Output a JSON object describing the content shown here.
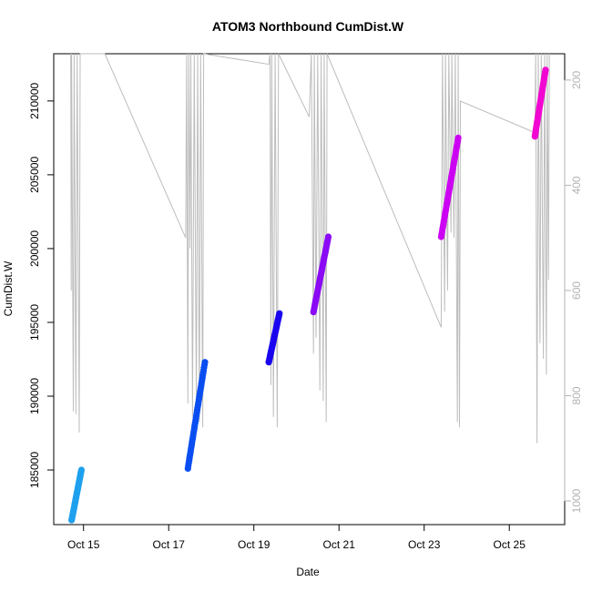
{
  "chart_data": {
    "type": "scatter",
    "title": "ATOM3 Northbound CumDist.W",
    "xlabel": "Date",
    "ylabel": "CumDist.W",
    "x_ticks": [
      {
        "x": 15,
        "label": "Oct 15"
      },
      {
        "x": 17,
        "label": "Oct 17"
      },
      {
        "x": 19,
        "label": "Oct 19"
      },
      {
        "x": 21,
        "label": "Oct 21"
      },
      {
        "x": 23,
        "label": "Oct 23"
      },
      {
        "x": 25,
        "label": "Oct 25"
      }
    ],
    "y_ticks": [
      185000,
      190000,
      195000,
      200000,
      205000,
      210000
    ],
    "y_tick_labels": [
      "185000",
      "190000",
      "195000",
      "200000",
      "205000",
      "210000"
    ],
    "y2_ticks": [
      200,
      400,
      600,
      800,
      1000
    ],
    "y2_tick_labels": [
      "200",
      "400",
      "600",
      "800",
      "1000"
    ],
    "xlim": [
      14.3,
      26.3
    ],
    "ylim": [
      181300,
      213200
    ],
    "y2lim": [
      1045,
      150
    ],
    "grid": false,
    "series": [
      {
        "color": "#1fa0ef",
        "x": [
          14.72,
          14.95
        ],
        "y": [
          181600,
          185000
        ]
      },
      {
        "color": "#0a4ef2",
        "x": [
          17.45,
          17.85
        ],
        "y": [
          185100,
          192300
        ]
      },
      {
        "color": "#1a05ef",
        "x": [
          19.35,
          19.6
        ],
        "y": [
          192300,
          195600
        ]
      },
      {
        "color": "#8a0af5",
        "x": [
          20.4,
          20.75
        ],
        "y": [
          195700,
          200800
        ]
      },
      {
        "color": "#cc00f2",
        "x": [
          23.4,
          23.8
        ],
        "y": [
          200800,
          207500
        ]
      },
      {
        "color": "#f206d2",
        "x": [
          25.6,
          25.85
        ],
        "y": [
          207600,
          212100
        ]
      }
    ],
    "track": {
      "color": "#bdbdbd",
      "points": [
        [
          14.7,
          150
        ],
        [
          14.71,
          600
        ],
        [
          14.72,
          150
        ],
        [
          14.76,
          830
        ],
        [
          14.78,
          150
        ],
        [
          14.82,
          835
        ],
        [
          14.85,
          150
        ],
        [
          14.9,
          870
        ],
        [
          14.92,
          150
        ],
        [
          15.5,
          150
        ],
        [
          17.4,
          500
        ],
        [
          17.42,
          150
        ],
        [
          17.45,
          815
        ],
        [
          17.47,
          150
        ],
        [
          17.5,
          520
        ],
        [
          17.52,
          150
        ],
        [
          17.56,
          840
        ],
        [
          17.6,
          150
        ],
        [
          17.65,
          830
        ],
        [
          17.68,
          150
        ],
        [
          17.72,
          850
        ],
        [
          17.75,
          150
        ],
        [
          17.8,
          860
        ],
        [
          17.82,
          150
        ],
        [
          19.35,
          170
        ],
        [
          19.38,
          150
        ],
        [
          19.4,
          780
        ],
        [
          19.42,
          150
        ],
        [
          19.46,
          840
        ],
        [
          19.5,
          150
        ],
        [
          19.55,
          860
        ],
        [
          19.58,
          150
        ],
        [
          20.3,
          270
        ],
        [
          20.35,
          150
        ],
        [
          20.4,
          720
        ],
        [
          20.42,
          150
        ],
        [
          20.46,
          690
        ],
        [
          20.5,
          150
        ],
        [
          20.55,
          790
        ],
        [
          20.58,
          150
        ],
        [
          20.63,
          810
        ],
        [
          20.65,
          150
        ],
        [
          20.7,
          850
        ],
        [
          20.72,
          150
        ],
        [
          23.4,
          670
        ],
        [
          23.43,
          150
        ],
        [
          23.48,
          640
        ],
        [
          23.5,
          150
        ],
        [
          23.55,
          600
        ],
        [
          23.58,
          150
        ],
        [
          23.63,
          490
        ],
        [
          23.65,
          150
        ],
        [
          23.7,
          500
        ],
        [
          23.73,
          150
        ],
        [
          23.78,
          850
        ],
        [
          23.8,
          150
        ],
        [
          23.83,
          860
        ],
        [
          23.85,
          240
        ],
        [
          25.6,
          300
        ],
        [
          25.62,
          150
        ],
        [
          25.65,
          890
        ],
        [
          25.68,
          150
        ],
        [
          25.72,
          700
        ],
        [
          25.75,
          150
        ],
        [
          25.8,
          730
        ],
        [
          25.83,
          150
        ],
        [
          25.87,
          760
        ],
        [
          25.89,
          150
        ],
        [
          25.92,
          580
        ],
        [
          25.94,
          150
        ]
      ]
    }
  }
}
